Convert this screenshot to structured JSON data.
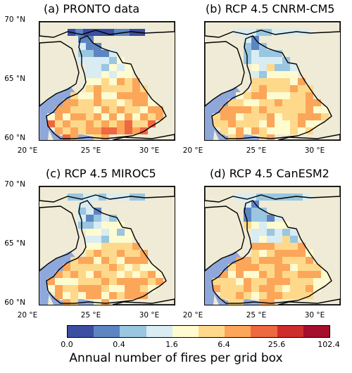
{
  "panels": [
    {
      "title": "(a) PRONTO data"
    },
    {
      "title": "(b) RCP 4.5 CNRM-CM5"
    },
    {
      "title": "(c) RCP 4.5 MIROC5"
    },
    {
      "title": "(d) RCP 4.5 CanESM2"
    }
  ],
  "axes": {
    "lat_labels": [
      "70 °N",
      "65 °N",
      "60 °N"
    ],
    "lon_labels": [
      "20 °E",
      "25 °E",
      "30 °E"
    ]
  },
  "colorbar": {
    "tick_labels": [
      "0.0",
      "0.4",
      "1.6",
      "6.4",
      "25.6",
      "102.4"
    ],
    "label": "Annual number of fires per grid box",
    "colors": [
      "#3b4ea1",
      "#5d85c2",
      "#99c6e0",
      "#d8ecf2",
      "#fdfbcf",
      "#fed98b",
      "#fca65a",
      "#ee6840",
      "#cd2d2c",
      "#a50e2c"
    ]
  },
  "colors": {
    "land": "#efebd6",
    "sea": "#8fa8db",
    "border": "#000000"
  }
}
